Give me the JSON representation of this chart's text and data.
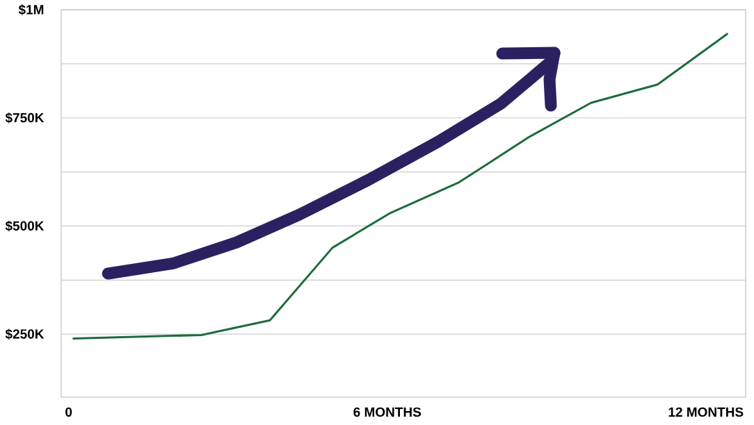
{
  "chart_data": {
    "type": "line",
    "grid": "y",
    "xlim": [
      -0.14,
      12.75
    ],
    "xticks": [
      {
        "value": 0,
        "label": "0"
      },
      {
        "value": 6,
        "label": "6 MONTHS"
      },
      {
        "value": 12,
        "label": "12 MONTHS"
      }
    ],
    "ylim": [
      104000,
      1000000
    ],
    "yticks": [
      {
        "value": 250000,
        "label": "$250K"
      },
      {
        "value": 375000,
        "label": null
      },
      {
        "value": 500000,
        "label": "$500K"
      },
      {
        "value": 625000,
        "label": null
      },
      {
        "value": 750000,
        "label": "$750K"
      },
      {
        "value": 875000,
        "label": null
      },
      {
        "value": 1000000,
        "label": "$1M"
      }
    ],
    "series": [
      {
        "color": "#1e6b3c",
        "x": [
          0.09,
          2.5,
          2.77,
          3.79,
          4.97,
          6.04,
          7.35,
          7.88,
          8.66,
          9.84,
          11.09,
          12.4
        ],
        "values": [
          240000,
          248000,
          255000,
          282000,
          450000,
          529000,
          601000,
          643000,
          705000,
          785000,
          827000,
          944000
        ]
      },
      {
        "color": "#2b2160",
        "x": [
          0.74,
          1.98,
          3.16,
          4.34,
          5.65,
          6.96,
          8.14,
          9.08,
          9.15
        ],
        "values": [
          390000,
          414000,
          462000,
          526000,
          607000,
          695000,
          783000,
          880000,
          900000
        ]
      }
    ]
  }
}
